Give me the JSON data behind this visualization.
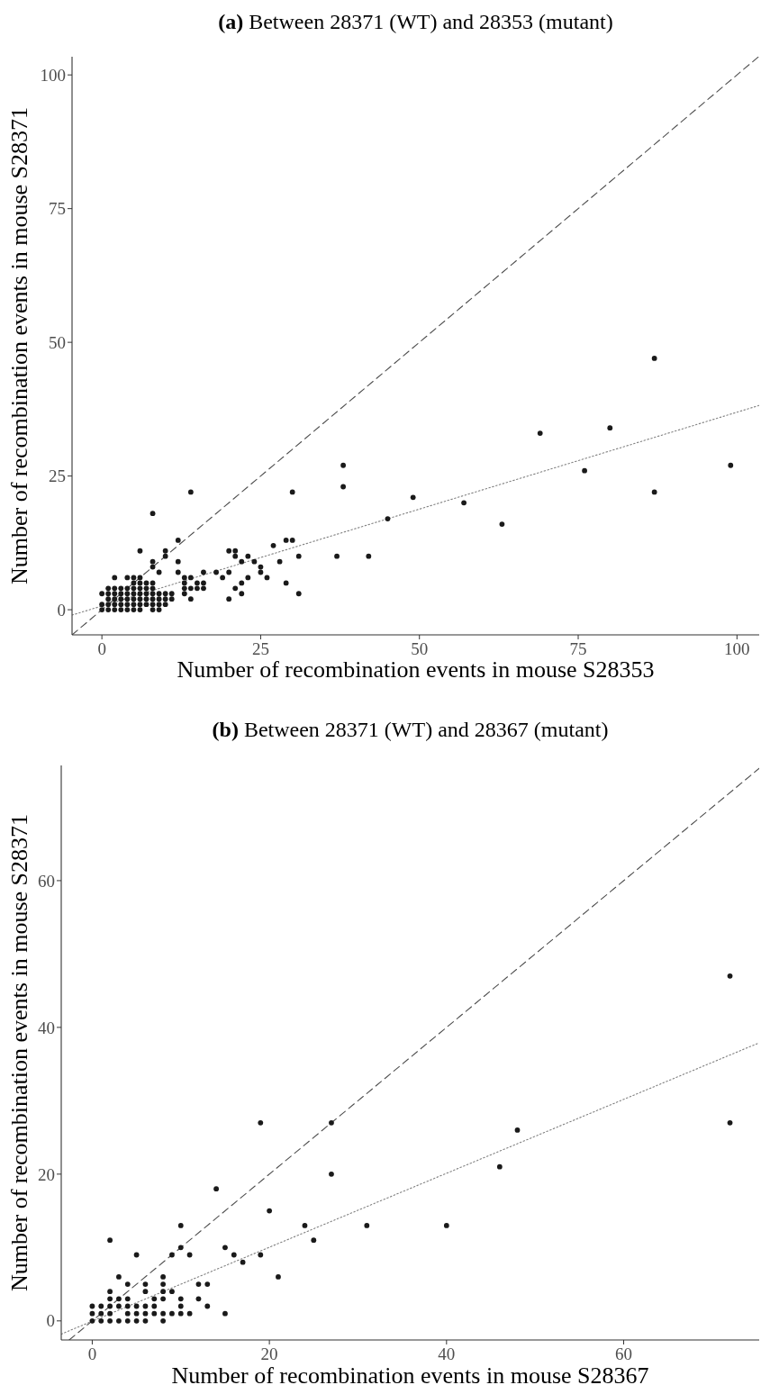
{
  "chart_data": [
    {
      "type": "scatter",
      "title": "(a) Between 28371 (WT) and 28353 (mutant)",
      "xlabel": "Number of recombination events in mouse S28353",
      "ylabel": "Number of recombination events in mouse S28371",
      "xlim": [
        -4.7,
        103.5
      ],
      "ylim": [
        -4.7,
        103.4
      ],
      "xticks": [
        0,
        25,
        50,
        75,
        100
      ],
      "yticks": [
        0,
        25,
        50,
        75,
        100
      ],
      "series": [
        {
          "type": "scatter",
          "marker": "circle",
          "color": "#1a1a1a",
          "x": [
            0,
            1,
            2,
            3,
            4,
            5,
            6,
            8,
            9,
            0,
            1,
            2,
            3,
            4,
            5,
            6,
            7,
            8,
            9,
            10,
            1,
            2,
            3,
            4,
            5,
            6,
            7,
            8,
            9,
            10,
            11,
            14,
            20,
            0,
            1,
            2,
            3,
            4,
            5,
            6,
            7,
            8,
            9,
            10,
            11,
            13,
            22,
            31,
            1,
            2,
            3,
            4,
            5,
            6,
            7,
            8,
            13,
            14,
            15,
            16,
            21,
            5,
            6,
            7,
            8,
            13,
            15,
            16,
            22,
            29,
            2,
            4,
            5,
            6,
            13,
            14,
            19,
            23,
            26,
            9,
            12,
            16,
            18,
            20,
            25,
            8,
            25,
            8,
            12,
            22,
            24,
            28,
            10,
            21,
            23,
            31,
            37,
            42,
            6,
            10,
            20,
            21,
            27,
            12,
            29,
            30,
            45,
            8,
            57,
            63,
            49,
            14,
            30,
            87,
            38,
            76,
            38,
            99,
            69,
            80,
            87
          ],
          "values": [
            0,
            0,
            0,
            0,
            0,
            0,
            0,
            0,
            0,
            1,
            1,
            1,
            1,
            1,
            1,
            1,
            1,
            1,
            1,
            1,
            2,
            2,
            2,
            2,
            2,
            2,
            2,
            2,
            2,
            2,
            2,
            2,
            2,
            3,
            3,
            3,
            3,
            3,
            3,
            3,
            3,
            3,
            3,
            3,
            3,
            3,
            3,
            3,
            4,
            4,
            4,
            4,
            4,
            4,
            4,
            4,
            4,
            4,
            4,
            4,
            4,
            5,
            5,
            5,
            5,
            5,
            5,
            5,
            5,
            5,
            6,
            6,
            6,
            6,
            6,
            6,
            6,
            6,
            6,
            7,
            7,
            7,
            7,
            7,
            7,
            8,
            8,
            9,
            9,
            9,
            9,
            9,
            10,
            10,
            10,
            10,
            10,
            10,
            11,
            11,
            11,
            11,
            12,
            13,
            13,
            13,
            17,
            18,
            20,
            16,
            21,
            22,
            22,
            22,
            23,
            26,
            27,
            27,
            33,
            34,
            47
          ]
        },
        {
          "type": "line",
          "line_style": "dashed",
          "color": "#4d4d4d",
          "x": [
            -4.7,
            103.4
          ],
          "values": [
            -4.7,
            103.4
          ]
        },
        {
          "type": "line",
          "line_style": "dotted",
          "color": "#808080",
          "x": [
            -4.7,
            103.5
          ],
          "values": [
            -1.0,
            38.2
          ]
        }
      ]
    },
    {
      "type": "scatter",
      "title": "(b) Between 28371 (WT) and 28367 (mutant)",
      "xlabel": "Number of recombination events in mouse S28367",
      "ylabel": "Number of recombination events in mouse S28371",
      "xlim": [
        -3.5,
        75.3
      ],
      "ylim": [
        -2.6,
        75.7
      ],
      "xticks": [
        0,
        20,
        40,
        60
      ],
      "yticks": [
        0,
        20,
        40,
        60
      ],
      "series": [
        {
          "type": "scatter",
          "marker": "circle",
          "color": "#1a1a1a",
          "x": [
            0,
            1,
            2,
            3,
            4,
            5,
            6,
            8,
            0,
            1,
            2,
            4,
            5,
            6,
            7,
            8,
            9,
            10,
            11,
            15,
            0,
            1,
            2,
            3,
            4,
            5,
            6,
            7,
            10,
            13,
            2,
            3,
            4,
            7,
            8,
            10,
            12,
            2,
            6,
            8,
            9,
            4,
            6,
            8,
            12,
            13,
            3,
            8,
            21,
            17,
            5,
            9,
            11,
            16,
            19,
            10,
            15,
            2,
            25,
            10,
            24,
            31,
            40,
            20,
            14,
            27,
            46,
            48,
            19,
            27,
            72,
            72
          ],
          "values": [
            0,
            0,
            0,
            0,
            0,
            0,
            0,
            0,
            1,
            1,
            1,
            1,
            1,
            1,
            1,
            1,
            1,
            1,
            1,
            1,
            2,
            2,
            2,
            2,
            2,
            2,
            2,
            2,
            2,
            2,
            3,
            3,
            3,
            3,
            3,
            3,
            3,
            4,
            4,
            4,
            4,
            5,
            5,
            5,
            5,
            5,
            6,
            6,
            6,
            8,
            9,
            9,
            9,
            9,
            9,
            10,
            10,
            11,
            11,
            13,
            13,
            13,
            13,
            15,
            18,
            20,
            21,
            26,
            27,
            27,
            27,
            47
          ]
        },
        {
          "type": "line",
          "line_style": "dashed",
          "color": "#4d4d4d",
          "x": [
            -2.6,
            75.3
          ],
          "values": [
            -2.6,
            75.3
          ]
        },
        {
          "type": "line",
          "line_style": "dotted",
          "color": "#808080",
          "x": [
            -3.5,
            75.3
          ],
          "values": [
            -1.8,
            37.9
          ]
        }
      ]
    }
  ]
}
